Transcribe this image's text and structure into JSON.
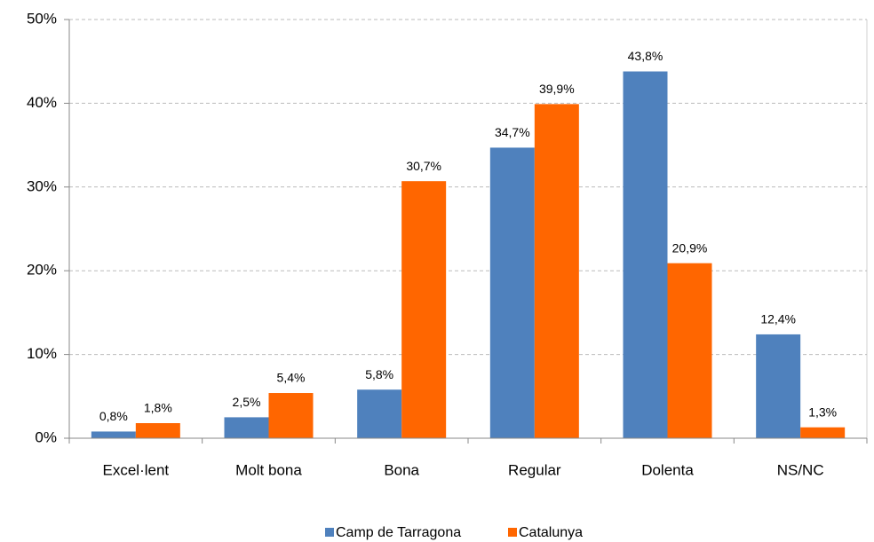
{
  "chart_data": {
    "type": "bar",
    "categories": [
      "Excel·lent",
      "Molt bona",
      "Bona",
      "Regular",
      "Dolenta",
      "NS/NC"
    ],
    "series": [
      {
        "name": "Camp de Tarragona",
        "color": "#4f81bd",
        "values": [
          0.8,
          2.5,
          5.8,
          34.7,
          43.8,
          12.4
        ],
        "value_labels": [
          "0,8%",
          "2,5%",
          "5,8%",
          "34,7%",
          "43,8%",
          "12,4%"
        ]
      },
      {
        "name": "Catalunya",
        "color": "#ff6600",
        "values": [
          1.8,
          5.4,
          30.7,
          39.9,
          20.9,
          1.3
        ],
        "value_labels": [
          "1,8%",
          "5,4%",
          "30,7%",
          "39,9%",
          "20,9%",
          "1,3%"
        ]
      }
    ],
    "ylim": [
      0,
      50
    ],
    "yticks": [
      {
        "value": 0,
        "label": "0%"
      },
      {
        "value": 10,
        "label": "10%"
      },
      {
        "value": 20,
        "label": "20%"
      },
      {
        "value": 30,
        "label": "30%"
      },
      {
        "value": 40,
        "label": "40%"
      },
      {
        "value": 50,
        "label": "50%"
      }
    ],
    "grid": true,
    "legend": "bottom"
  }
}
